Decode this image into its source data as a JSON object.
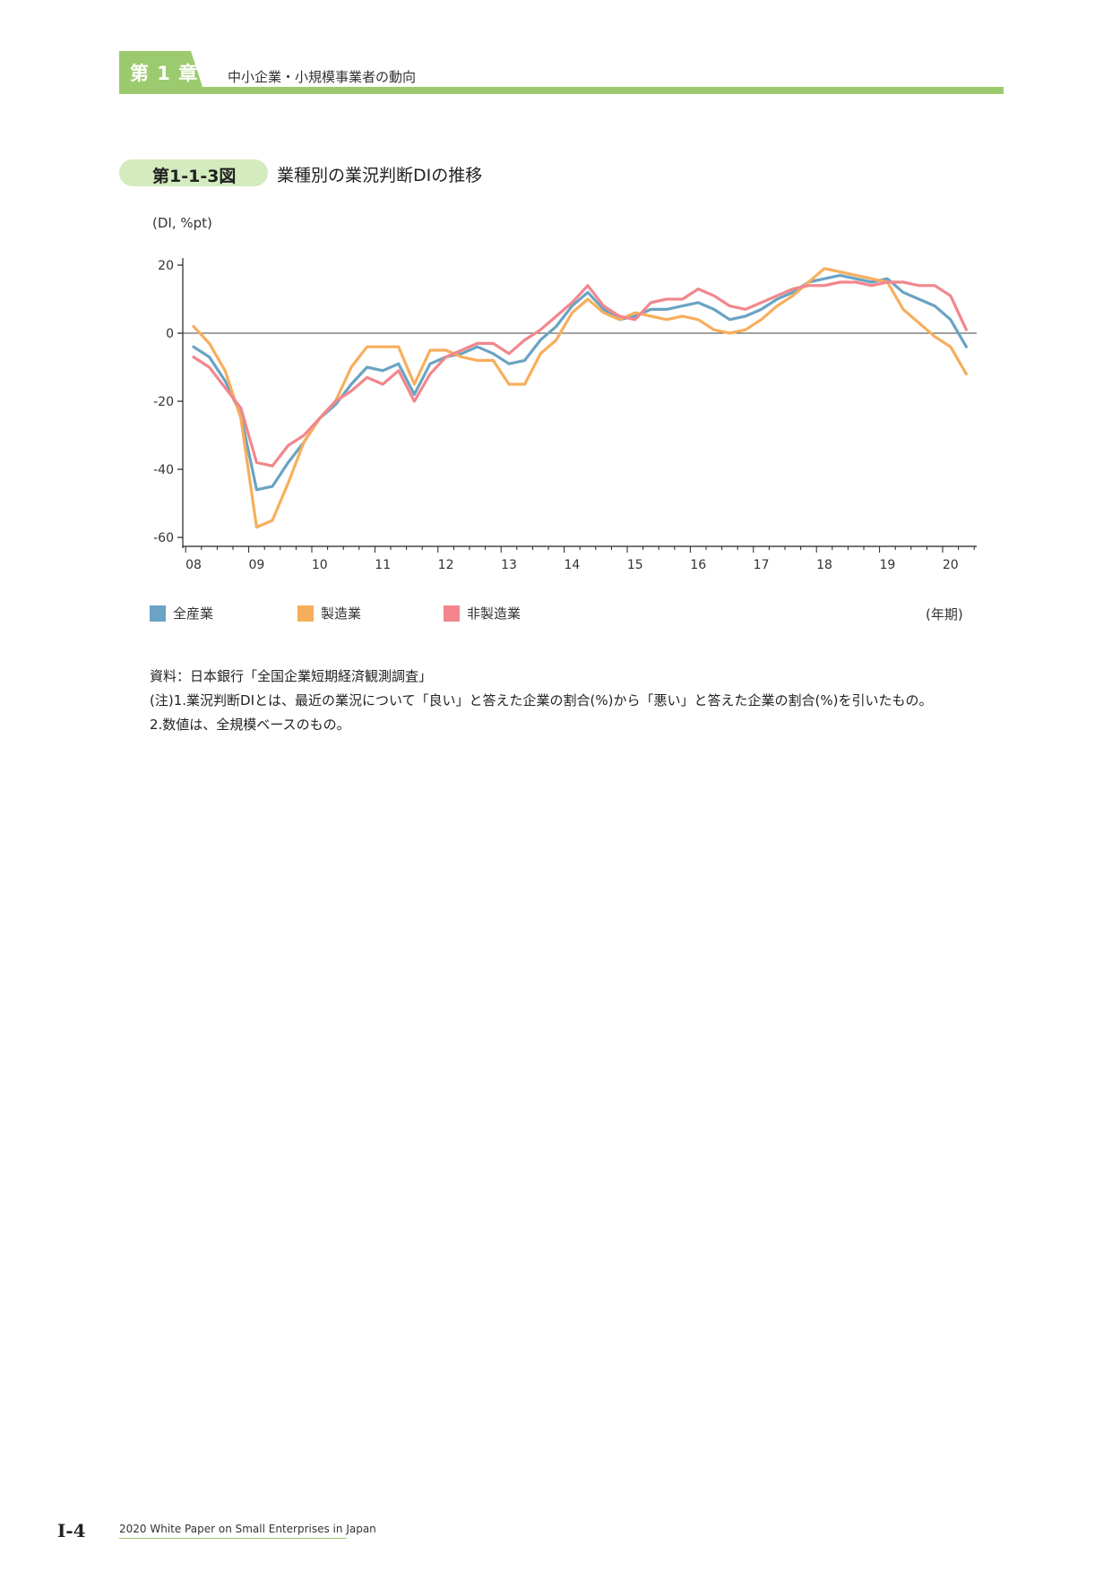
{
  "header": {
    "chapter_label": "第 1 章",
    "chapter_title": "中小企業・小規模事業者の動向"
  },
  "figure": {
    "number": "第1-1-3図",
    "title": "業種別の業況判断DIの推移"
  },
  "chart_data": {
    "type": "line",
    "ylabel": "(DI, %pt)",
    "xlabel": "(年期)",
    "ylim": [
      -60,
      20
    ],
    "yticks": [
      20,
      0,
      -20,
      -40,
      -60
    ],
    "x_tick_labels": [
      "08",
      "09",
      "10",
      "11",
      "12",
      "13",
      "14",
      "15",
      "16",
      "17",
      "18",
      "19",
      "20"
    ],
    "x_start": "2008Q1",
    "x_end": "2020Q2",
    "zero_line": true,
    "series": [
      {
        "name": "全産業",
        "color": "#6aa3c3",
        "values": [
          -4,
          -7,
          -14,
          -24,
          -46,
          -45,
          -38,
          -32,
          -25,
          -21,
          -15,
          -10,
          -11,
          -9,
          -18,
          -9,
          -7,
          -6,
          -4,
          -6,
          -9,
          -8,
          -2,
          2,
          8,
          12,
          7,
          4,
          5,
          7,
          7,
          8,
          9,
          7,
          4,
          5,
          7,
          10,
          12,
          15,
          16,
          17,
          16,
          15,
          16,
          12,
          10,
          8,
          4,
          -4
        ]
      },
      {
        "name": "製造業",
        "color": "#f7ae5c",
        "values": [
          2,
          -3,
          -11,
          -25,
          -57,
          -55,
          -44,
          -32,
          -25,
          -20,
          -10,
          -4,
          -4,
          -4,
          -15,
          -5,
          -5,
          -7,
          -8,
          -8,
          -15,
          -15,
          -6,
          -2,
          6,
          10,
          6,
          4,
          6,
          5,
          4,
          5,
          4,
          1,
          0,
          1,
          4,
          8,
          11,
          15,
          19,
          18,
          17,
          16,
          15,
          7,
          3,
          -1,
          -4,
          -12
        ]
      },
      {
        "name": "非製造業",
        "color": "#f2868c",
        "values": [
          -7,
          -10,
          -16,
          -22,
          -38,
          -39,
          -33,
          -30,
          -25,
          -20,
          -17,
          -13,
          -15,
          -11,
          -20,
          -12,
          -7,
          -5,
          -3,
          -3,
          -6,
          -2,
          1,
          5,
          9,
          14,
          8,
          5,
          4,
          9,
          10,
          10,
          13,
          11,
          8,
          7,
          9,
          11,
          13,
          14,
          14,
          15,
          15,
          14,
          15,
          15,
          14,
          14,
          11,
          1
        ]
      }
    ]
  },
  "notes": {
    "source": "資料：日本銀行「全国企業短期経済観測調査」",
    "note1": "(注)1.業況判断DIとは、最近の業況について「良い」と答えた企業の割合(%)から「悪い」と答えた企業の割合(%)を引いたもの。",
    "note2": "2.数値は、全規模ベースのもの。"
  },
  "footer": {
    "page": "Ⅰ-4",
    "text": "2020 White Paper on Small Enterprises in Japan"
  }
}
